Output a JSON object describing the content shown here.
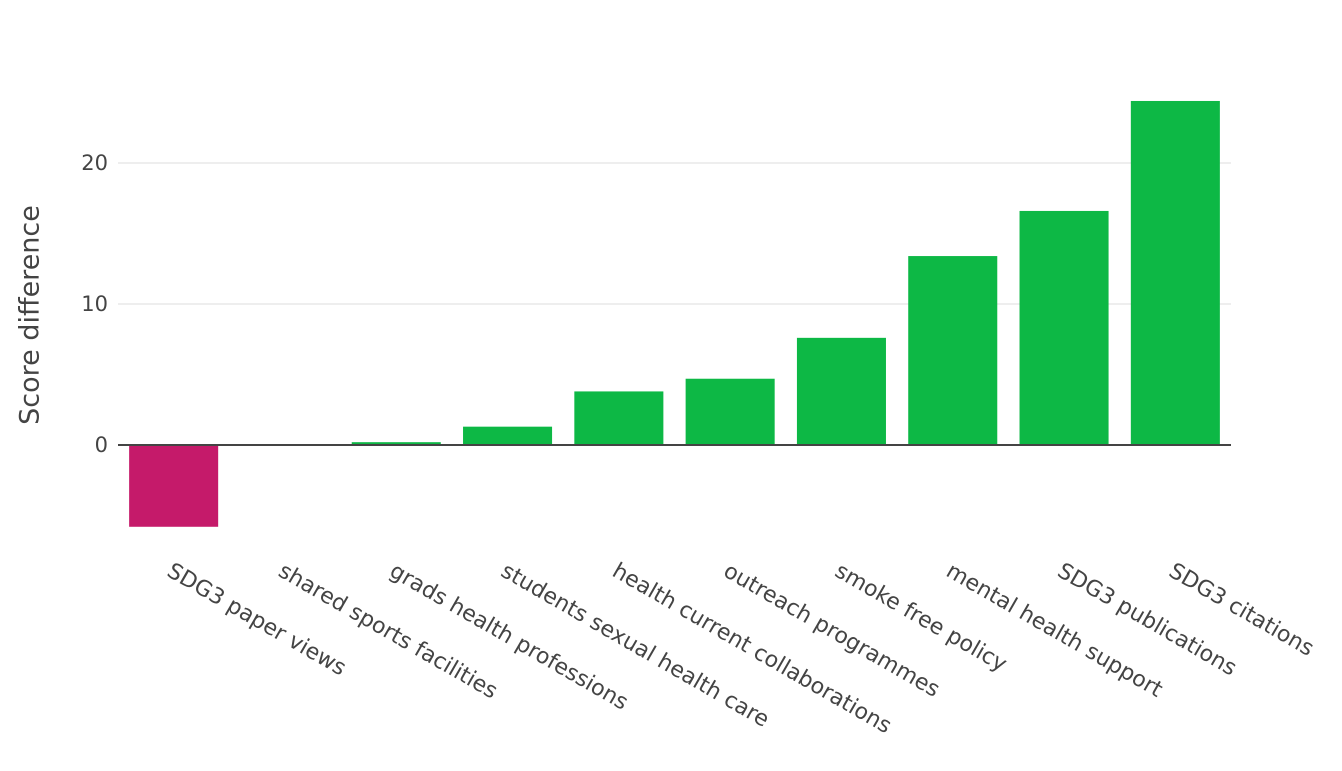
{
  "chart_data": {
    "type": "bar",
    "categories": [
      "SDG3 paper views",
      "shared sports facilities",
      "grads health professions",
      "students sexual health care",
      "health current collaborations",
      "outreach programmes",
      "smoke free policy",
      "mental health support",
      "SDG3 publications",
      "SDG3 citations"
    ],
    "values": [
      -5.8,
      0.0,
      0.2,
      1.3,
      3.8,
      4.7,
      7.6,
      13.4,
      16.6,
      24.4
    ],
    "title": "",
    "xlabel": "",
    "ylabel": "Score difference",
    "ylim": [
      -7.5,
      27
    ],
    "yticks": [
      0,
      10,
      20
    ],
    "grid": true,
    "legend": "none",
    "colors": {
      "positive": "#0db845",
      "negative": "#c51a6a",
      "gridline": "#e8e8e8",
      "zeroline": "#444444"
    }
  }
}
